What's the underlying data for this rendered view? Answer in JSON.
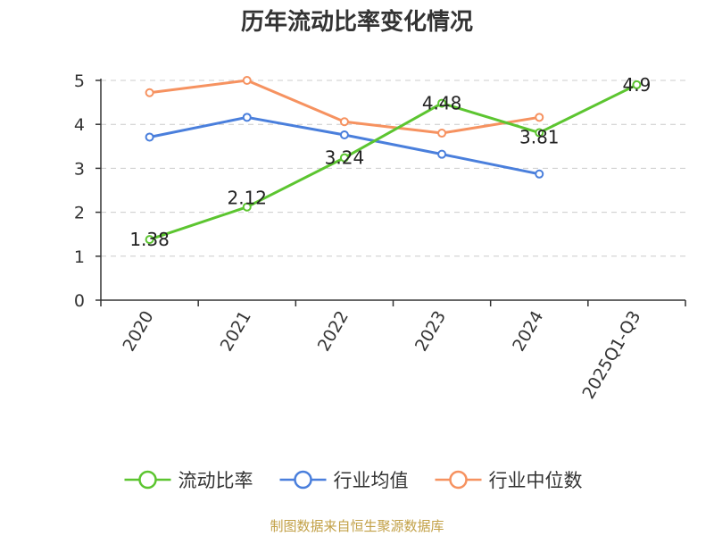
{
  "chart_data": {
    "type": "line",
    "title": "历年流动比率变化情况",
    "categories": [
      "2020",
      "2021",
      "2022",
      "2023",
      "2024",
      "2025Q1-Q3"
    ],
    "ylim": [
      0,
      5
    ],
    "yticks": [
      0,
      1,
      2,
      3,
      4,
      5
    ],
    "grid": true,
    "legend_position": "bottom",
    "series": [
      {
        "name": "流动比率",
        "color": "#5cc530",
        "values": [
          1.38,
          2.12,
          3.24,
          4.48,
          3.81,
          4.9
        ],
        "labels": [
          "1.38",
          "2.12",
          "3.24",
          "4.48",
          "3.81",
          "4.9"
        ]
      },
      {
        "name": "行业均值",
        "color": "#4a7fdc",
        "values": [
          3.71,
          4.16,
          3.76,
          3.32,
          2.87,
          null
        ]
      },
      {
        "name": "行业中位数",
        "color": "#f69260",
        "values": [
          4.72,
          5.0,
          4.06,
          3.8,
          4.16,
          null
        ]
      }
    ],
    "source": "制图数据来自恒生聚源数据库"
  }
}
